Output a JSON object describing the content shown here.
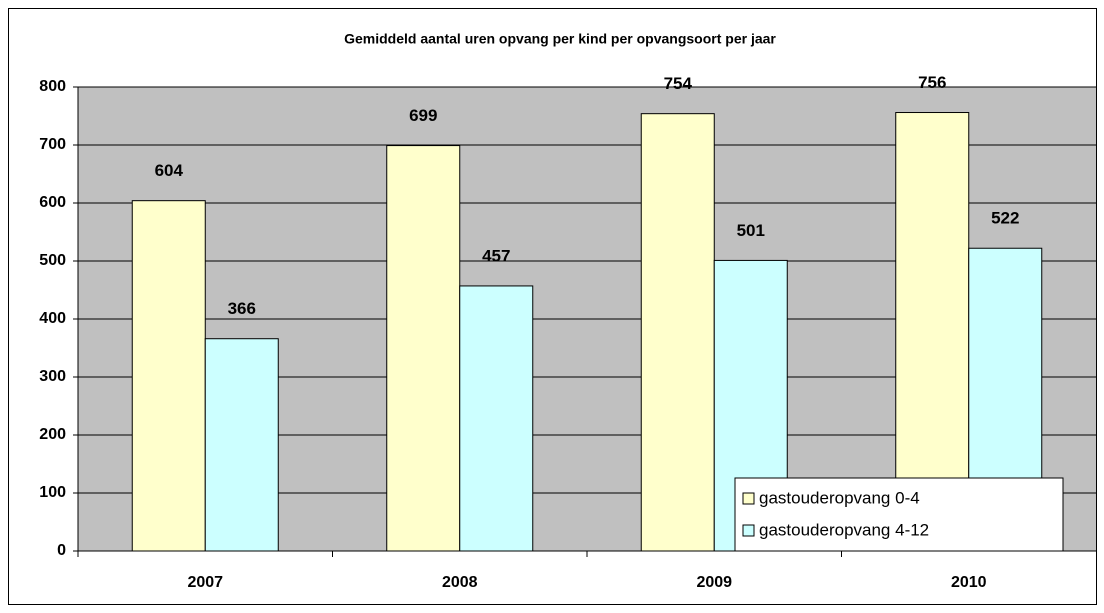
{
  "chart_data": {
    "type": "bar",
    "title": "Gemiddeld aantal uren opvang per kind per opvangsoort per jaar",
    "categories": [
      "2007",
      "2008",
      "2009",
      "2010"
    ],
    "series": [
      {
        "name": "gastouderopvang 0-4",
        "color": "#FFFFCC",
        "values": [
          604,
          699,
          754,
          756
        ]
      },
      {
        "name": "gastouderopvang 4-12",
        "color": "#CCFFFF",
        "values": [
          366,
          457,
          501,
          522
        ]
      }
    ],
    "ylim": [
      0,
      800
    ],
    "yticks": [
      0,
      100,
      200,
      300,
      400,
      500,
      600,
      700,
      800
    ],
    "grid": true,
    "plot_background": "#C0C0C0",
    "legend": "lower right"
  }
}
